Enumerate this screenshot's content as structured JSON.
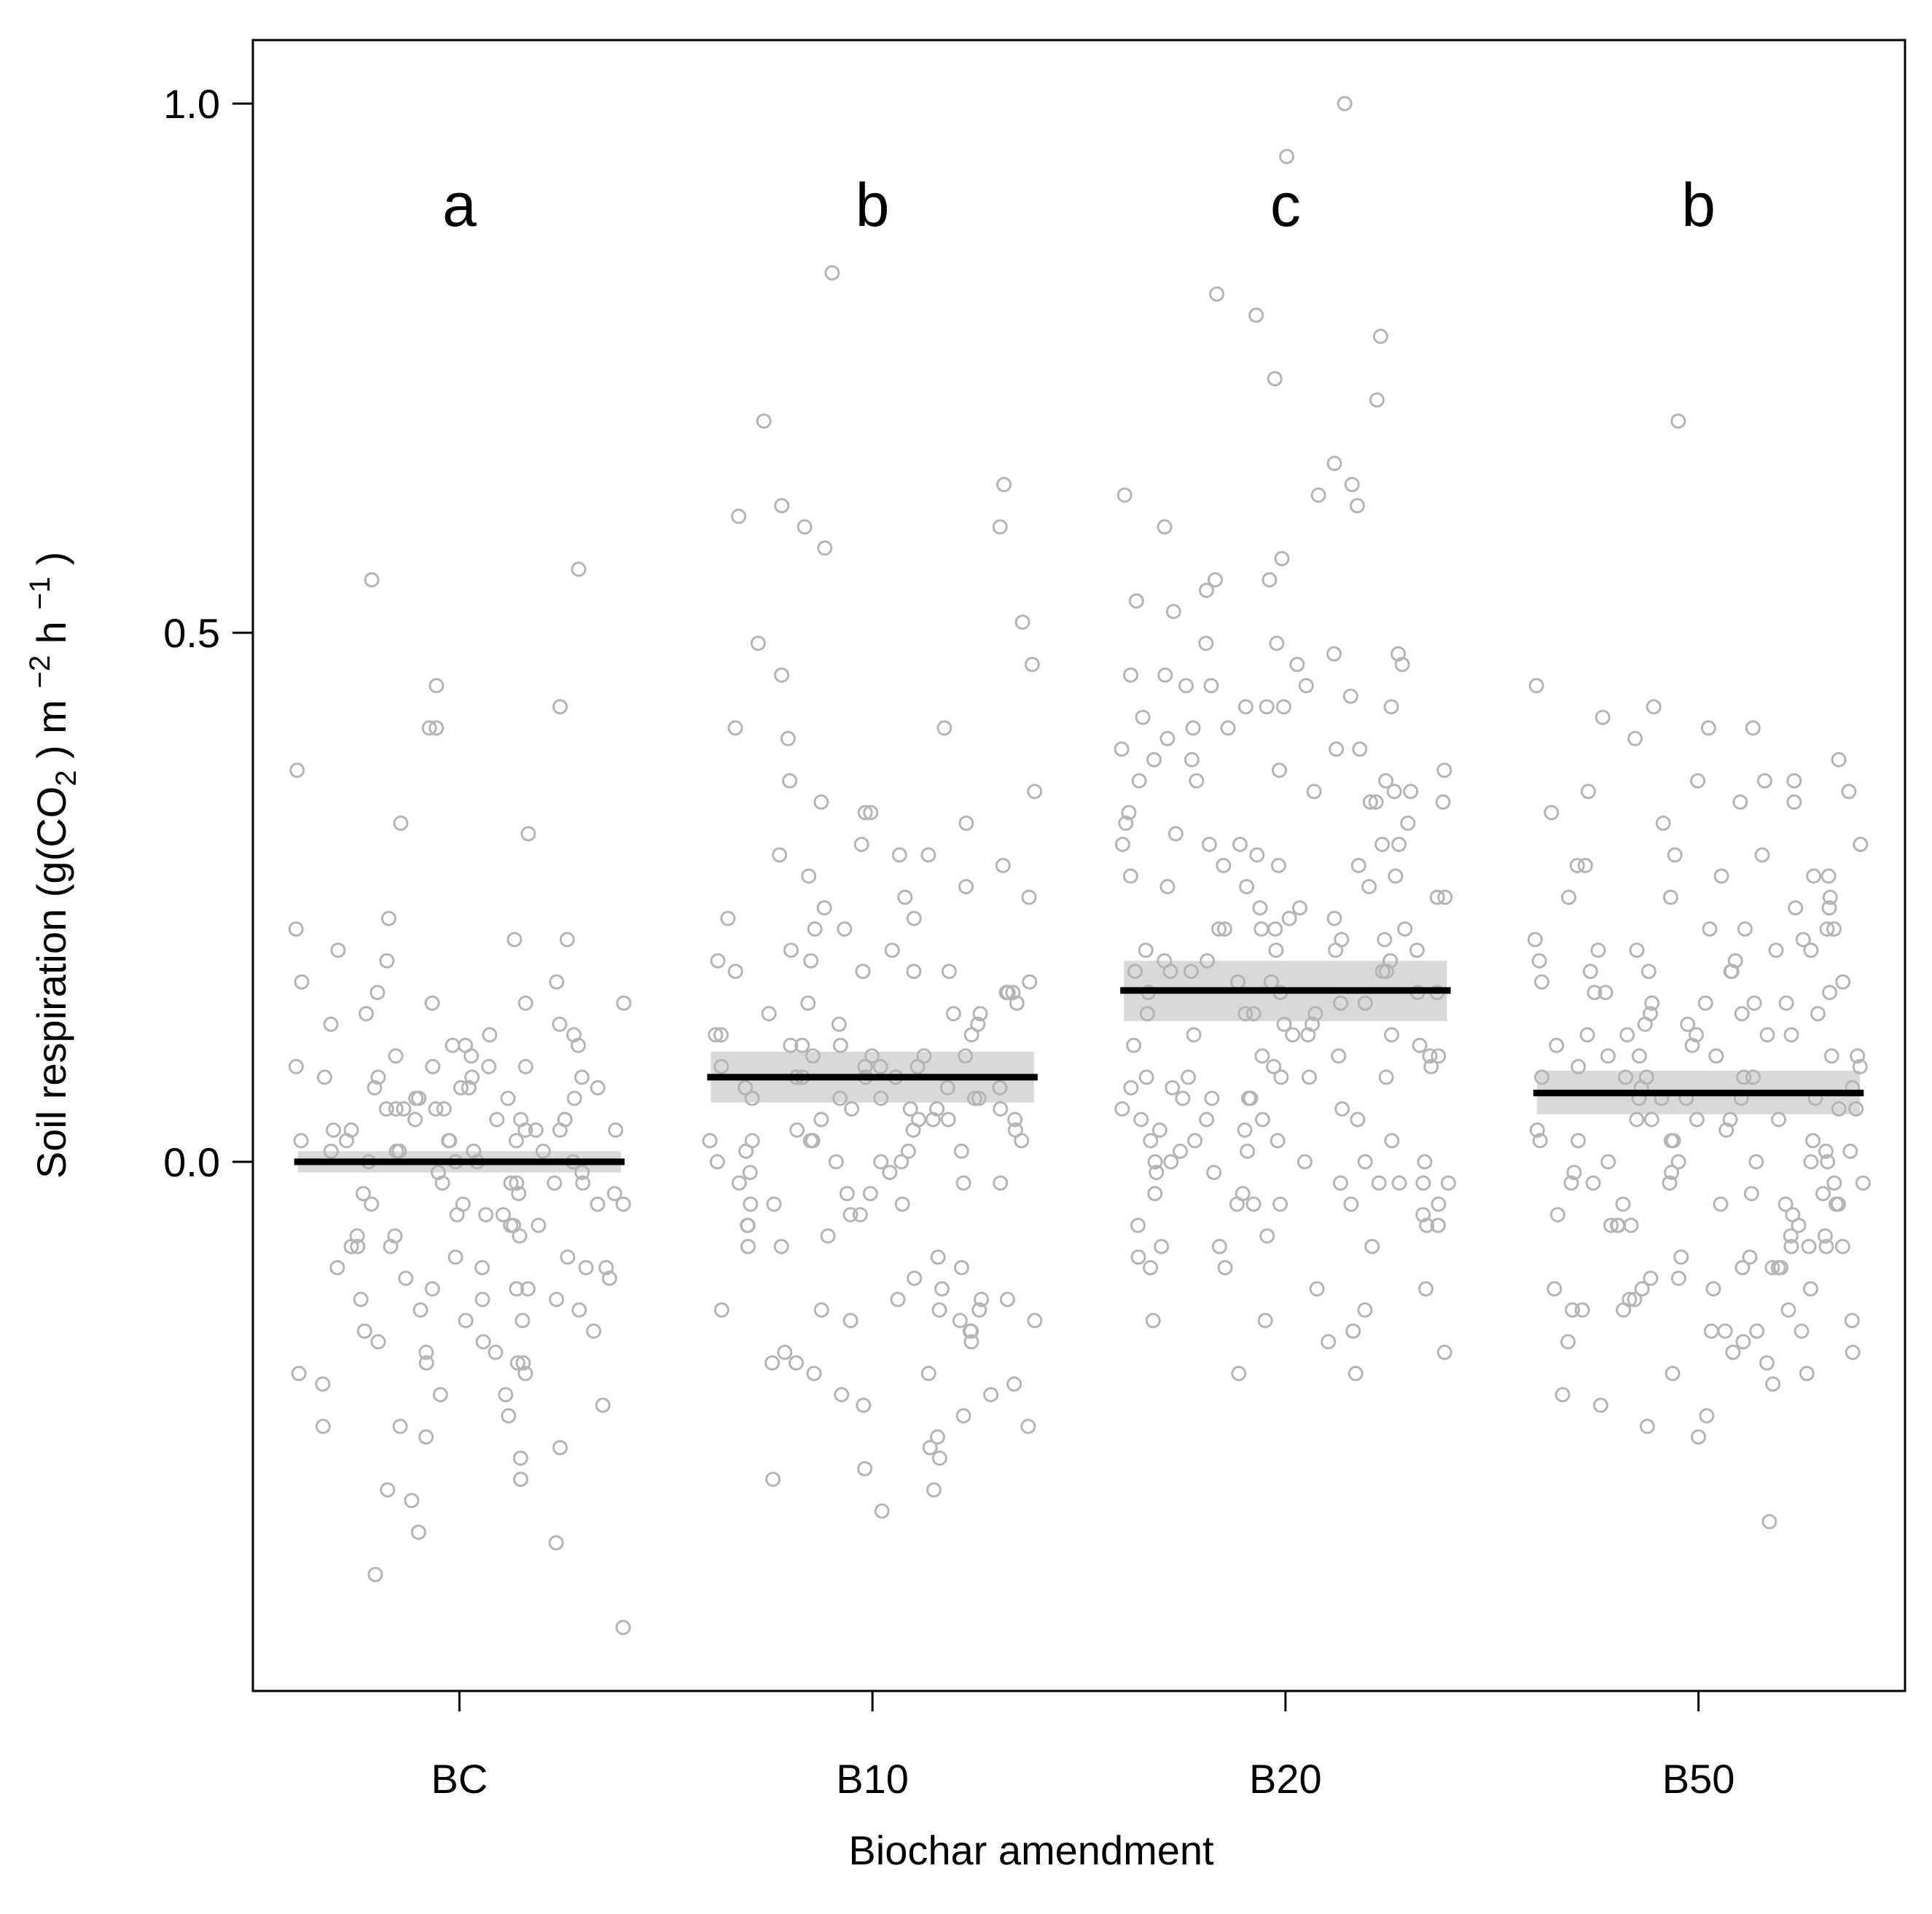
{
  "chart_data": {
    "type": "scatter",
    "title": "",
    "xlabel": "Biochar amendment",
    "ylabel": {
      "prefix": "Soil respiration (g(CO",
      "sub": "2",
      "mid": " ) m ",
      "sup1": "−2",
      "mid2": " h ",
      "sup2": "−1",
      "suffix": " )"
    },
    "ylim": [
      -0.5,
      1.06
    ],
    "yticks": [
      {
        "value": 0.0,
        "label": "0.0"
      },
      {
        "value": 0.5,
        "label": "0.5"
      },
      {
        "value": 1.0,
        "label": "1.0"
      }
    ],
    "grid": false,
    "colors": {
      "points": "#b5b5b5",
      "mean_line": "#000000",
      "ci_band": "#d9d9d9"
    },
    "categories": [
      {
        "name": "BC",
        "letter": "a",
        "mean": 0.0,
        "ci": [
          -0.01,
          0.01
        ],
        "values": [
          -0.06,
          -0.07,
          -0.05,
          -0.04,
          -0.03,
          -0.02,
          -0.08,
          -0.1,
          -0.12,
          -0.09,
          -0.06,
          -0.11,
          -0.13,
          -0.08,
          -0.05,
          -0.04,
          -0.03,
          -0.02,
          -0.01,
          0.0,
          0.01,
          0.02,
          0.03,
          0.04,
          0.05,
          0.06,
          0.07,
          0.08,
          0.09,
          0.05,
          0.04,
          0.03,
          0.02,
          0.01,
          0.06,
          0.07,
          0.03,
          0.02,
          0.01,
          0.0,
          -0.01,
          -0.02,
          0.04,
          0.05,
          0.1,
          0.12,
          0.15,
          0.13,
          0.09,
          0.08,
          -0.15,
          -0.18,
          -0.2,
          -0.17,
          -0.14,
          -0.19,
          -0.12,
          -0.1,
          0.45,
          0.17,
          0.16,
          0.2,
          0.21,
          0.22,
          0.23,
          0.19,
          0.15,
          0.14,
          0.13,
          0.11,
          0.08,
          0.06,
          0.04,
          0.03,
          0.02,
          0.0,
          -0.02,
          -0.04,
          -0.06,
          -0.08,
          -0.09,
          -0.11,
          -0.13,
          -0.15,
          -0.16,
          -0.18,
          -0.2,
          -0.22,
          -0.24,
          -0.26,
          -0.27,
          -0.3,
          -0.31,
          -0.36,
          -0.44,
          -0.05,
          -0.07,
          -0.1,
          -0.12,
          -0.14,
          -0.17,
          -0.19,
          -0.21,
          -0.23,
          -0.25,
          0.07,
          0.05,
          0.03,
          0.01,
          0.56,
          0.55,
          0.43,
          0.41,
          0.41,
          0.37,
          0.32,
          0.31,
          0.21,
          0.17,
          0.15,
          0.12,
          0.11,
          0.1,
          0.09,
          0.08,
          0.07,
          0.06,
          0.04,
          0.02,
          0.0,
          -0.02,
          -0.04,
          -0.07,
          -0.1,
          -0.13,
          -0.16,
          -0.19,
          -0.22,
          -0.25,
          -0.28,
          -0.32,
          -0.35,
          -0.39,
          0.05,
          0.03,
          0.01,
          -0.03,
          0.09,
          0.11
        ]
      },
      {
        "name": "B10",
        "letter": "b",
        "mean": 0.08,
        "ci": [
          0.056,
          0.104
        ],
        "values": [
          0.14,
          0.12,
          0.1,
          0.09,
          0.08,
          0.06,
          0.05,
          0.04,
          0.02,
          0.01,
          0.0,
          -0.02,
          -0.04,
          -0.06,
          -0.08,
          -0.1,
          -0.12,
          -0.14,
          0.24,
          0.29,
          0.18,
          0.16,
          0.19,
          0.61,
          0.6,
          0.58,
          0.47,
          0.46,
          0.36,
          0.29,
          0.25,
          0.2,
          0.18,
          0.15,
          0.13,
          0.11,
          0.09,
          0.07,
          0.06,
          0.05,
          0.04,
          0.03,
          0.02,
          0.01,
          0.0,
          -0.01,
          -0.03,
          -0.05,
          -0.07,
          -0.09,
          -0.11,
          -0.13,
          -0.14,
          -0.15,
          -0.05,
          -0.04,
          0.02,
          0.03,
          0.04,
          0.05,
          0.06,
          0.07,
          0.08,
          0.09,
          0.11,
          0.13,
          0.15,
          0.17,
          0.19,
          0.22,
          0.84,
          0.7,
          0.64,
          0.6,
          0.51,
          0.41,
          0.35,
          0.32,
          0.3,
          0.29,
          0.28,
          0.27,
          0.26,
          0.25,
          0.23,
          0.2,
          0.18,
          0.16,
          0.14,
          0.12,
          0.1,
          0.08,
          0.06,
          0.04,
          0.02,
          0.0,
          -0.02,
          -0.04,
          -0.06,
          -0.08,
          -0.13,
          -0.16,
          -0.19,
          -0.2,
          -0.22,
          -0.24,
          -0.26,
          -0.28,
          -0.3,
          -0.13,
          -0.14,
          -0.15,
          0.62,
          0.49,
          0.41,
          0.4,
          0.34,
          0.33,
          0.33,
          0.23,
          0.22,
          0.18,
          0.16,
          0.14,
          0.12,
          0.11,
          0.1,
          0.1,
          0.09,
          0.08,
          0.07,
          0.06,
          0.05,
          0.04,
          0.03,
          0.02,
          0.01,
          0.0,
          -0.01,
          -0.02,
          -0.03,
          -0.14,
          -0.15,
          -0.16,
          -0.17,
          -0.18,
          -0.19,
          -0.2,
          -0.21,
          -0.22,
          -0.23,
          -0.25,
          -0.27,
          -0.29,
          -0.31,
          -0.33
        ]
      },
      {
        "name": "B20",
        "letter": "c",
        "mean": 0.162,
        "ci": [
          0.133,
          0.19
        ],
        "values": [
          0.95,
          0.64,
          0.62,
          0.55,
          0.54,
          0.53,
          0.52,
          0.47,
          0.43,
          0.41,
          0.39,
          0.38,
          0.37,
          0.36,
          0.35,
          0.34,
          0.3,
          0.28,
          0.27,
          0.25,
          0.23,
          0.21,
          0.19,
          0.18,
          0.17,
          0.15,
          0.13,
          0.11,
          0.09,
          0.07,
          0.05,
          0.03,
          0.0,
          -0.02,
          -0.04,
          -0.07,
          -0.09,
          -0.12,
          -0.15,
          -0.17,
          -0.18,
          0.78,
          0.72,
          0.43,
          0.41,
          0.39,
          0.36,
          0.33,
          0.3,
          0.29,
          0.22,
          0.2,
          0.19,
          0.18,
          0.16,
          0.14,
          0.12,
          0.1,
          0.08,
          0.06,
          0.04,
          0.02,
          0.01,
          0.0,
          -0.01,
          -0.02,
          -0.03,
          -0.04,
          -0.05,
          -0.06,
          -0.16,
          1.0,
          0.8,
          0.63,
          0.46,
          0.45,
          0.44,
          0.43,
          0.39,
          0.38,
          0.37,
          0.36,
          0.34,
          0.32,
          0.3,
          0.28,
          0.26,
          0.24,
          0.22,
          0.2,
          0.18,
          0.16,
          0.14,
          0.12,
          0.1,
          0.08,
          0.06,
          0.04,
          0.02,
          0.0,
          -0.02,
          -0.04,
          -0.06,
          -0.08,
          -0.1,
          -0.2,
          0.66,
          0.57,
          0.55,
          0.49,
          0.48,
          0.47,
          0.46,
          0.45,
          0.35,
          0.34,
          0.32,
          0.3,
          0.28,
          0.26,
          0.24,
          0.22,
          0.2,
          0.18,
          0.16,
          0.14,
          0.12,
          0.1,
          0.08,
          0.06,
          0.04,
          0.02,
          0.0,
          -0.02,
          -0.04,
          -0.06,
          -0.08,
          -0.12,
          -0.2,
          0.82,
          0.74,
          0.6,
          0.48,
          0.45,
          0.42,
          0.4,
          0.35,
          0.31,
          0.3,
          0.26,
          0.22,
          0.2,
          0.18,
          0.16,
          0.14,
          0.12,
          0.1,
          0.08,
          0.06,
          0.04,
          0.02,
          0.0,
          -0.02,
          -0.04,
          -0.06,
          -0.08,
          -0.1,
          -0.14,
          -0.15,
          0.63,
          0.49,
          0.43,
          0.27,
          0.25,
          0.23,
          0.21,
          0.19,
          0.17,
          0.15,
          0.13,
          0.11,
          0.09,
          0.07,
          0.05,
          0.03,
          0.01,
          -0.01,
          -0.03,
          0.22,
          0.08
        ]
      },
      {
        "name": "B50",
        "letter": "b",
        "mean": 0.065,
        "ci": [
          0.045,
          0.086
        ],
        "values": [
          0.36,
          0.22,
          0.21,
          0.2,
          0.19,
          0.18,
          0.17,
          0.15,
          0.13,
          0.11,
          0.09,
          0.07,
          0.05,
          0.03,
          0.01,
          -0.01,
          -0.03,
          -0.05,
          -0.07,
          -0.09,
          -0.11,
          -0.13,
          0.24,
          0.22,
          0.2,
          0.18,
          0.16,
          0.14,
          0.12,
          0.1,
          0.08,
          0.06,
          0.04,
          0.02,
          0.0,
          -0.02,
          -0.04,
          -0.06,
          -0.08,
          -0.1,
          -0.12,
          -0.14,
          -0.16,
          -0.17,
          0.41,
          0.34,
          0.28,
          0.27,
          0.25,
          0.22,
          0.19,
          0.16,
          0.14,
          0.12,
          0.1,
          0.08,
          0.06,
          0.04,
          0.02,
          0.0,
          -0.02,
          -0.04,
          -0.06,
          0.35,
          0.28,
          0.2,
          0.18,
          0.16,
          0.14,
          0.12,
          0.1,
          0.08,
          0.06,
          0.04,
          0.02,
          0.0,
          -0.02,
          -0.04,
          -0.06,
          -0.08,
          -0.1,
          -0.12,
          -0.14,
          -0.16,
          -0.2,
          -0.26,
          -0.34,
          0.45,
          0.4,
          0.36,
          0.3,
          0.24,
          0.21,
          0.18,
          0.15,
          0.13,
          0.11,
          0.09,
          0.07,
          0.05,
          0.03,
          0.01,
          -0.01,
          -0.03,
          -0.05,
          -0.07,
          -0.09,
          -0.11,
          -0.13,
          -0.15,
          -0.17,
          -0.19,
          -0.21,
          -0.23,
          -0.25,
          0.36,
          0.35,
          0.34,
          0.32,
          0.29,
          0.27,
          0.25,
          0.2,
          0.15,
          0.12,
          0.1,
          0.08,
          0.06,
          0.04,
          0.02,
          0.0,
          -0.02,
          -0.04,
          -0.06,
          -0.08,
          -0.1,
          -0.12,
          -0.14,
          -0.16,
          -0.18,
          -0.2,
          -0.22,
          -0.24,
          0.7,
          0.43,
          0.42,
          0.41,
          0.38,
          0.33,
          0.29,
          0.27,
          0.25,
          0.22,
          0.17,
          0.15,
          0.12,
          0.1,
          0.08,
          0.06,
          0.04,
          0.02,
          0.0,
          -0.02,
          -0.04,
          -0.06,
          -0.08,
          -0.1,
          -0.12,
          -0.14,
          -0.16,
          -0.18
        ]
      }
    ]
  }
}
